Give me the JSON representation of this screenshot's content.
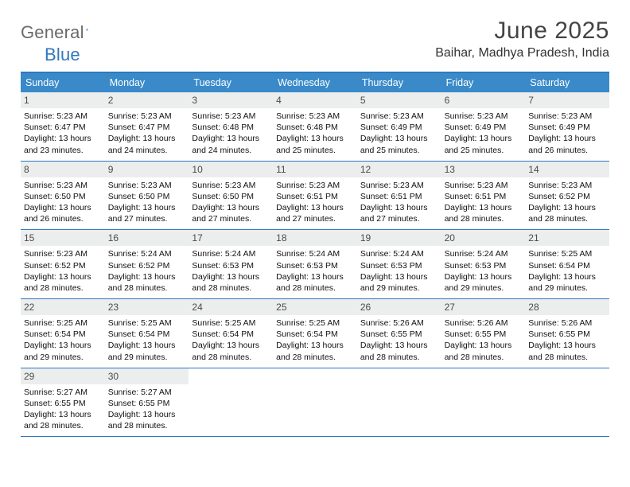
{
  "brand": {
    "word1": "General",
    "word2": "Blue"
  },
  "title": "June 2025",
  "subtitle": "Baihar, Madhya Pradesh, India",
  "colors": {
    "header_bar": "#3a8ac9",
    "rule": "#2f78bd",
    "date_bg": "#eceeee",
    "title_color": "#444444",
    "text_color": "#111111"
  },
  "day_names": [
    "Sunday",
    "Monday",
    "Tuesday",
    "Wednesday",
    "Thursday",
    "Friday",
    "Saturday"
  ],
  "weeks": [
    [
      {
        "n": "1",
        "sr": "5:23 AM",
        "ss": "6:47 PM",
        "dl": "13 hours and 23 minutes."
      },
      {
        "n": "2",
        "sr": "5:23 AM",
        "ss": "6:47 PM",
        "dl": "13 hours and 24 minutes."
      },
      {
        "n": "3",
        "sr": "5:23 AM",
        "ss": "6:48 PM",
        "dl": "13 hours and 24 minutes."
      },
      {
        "n": "4",
        "sr": "5:23 AM",
        "ss": "6:48 PM",
        "dl": "13 hours and 25 minutes."
      },
      {
        "n": "5",
        "sr": "5:23 AM",
        "ss": "6:49 PM",
        "dl": "13 hours and 25 minutes."
      },
      {
        "n": "6",
        "sr": "5:23 AM",
        "ss": "6:49 PM",
        "dl": "13 hours and 25 minutes."
      },
      {
        "n": "7",
        "sr": "5:23 AM",
        "ss": "6:49 PM",
        "dl": "13 hours and 26 minutes."
      }
    ],
    [
      {
        "n": "8",
        "sr": "5:23 AM",
        "ss": "6:50 PM",
        "dl": "13 hours and 26 minutes."
      },
      {
        "n": "9",
        "sr": "5:23 AM",
        "ss": "6:50 PM",
        "dl": "13 hours and 27 minutes."
      },
      {
        "n": "10",
        "sr": "5:23 AM",
        "ss": "6:50 PM",
        "dl": "13 hours and 27 minutes."
      },
      {
        "n": "11",
        "sr": "5:23 AM",
        "ss": "6:51 PM",
        "dl": "13 hours and 27 minutes."
      },
      {
        "n": "12",
        "sr": "5:23 AM",
        "ss": "6:51 PM",
        "dl": "13 hours and 27 minutes."
      },
      {
        "n": "13",
        "sr": "5:23 AM",
        "ss": "6:51 PM",
        "dl": "13 hours and 28 minutes."
      },
      {
        "n": "14",
        "sr": "5:23 AM",
        "ss": "6:52 PM",
        "dl": "13 hours and 28 minutes."
      }
    ],
    [
      {
        "n": "15",
        "sr": "5:23 AM",
        "ss": "6:52 PM",
        "dl": "13 hours and 28 minutes."
      },
      {
        "n": "16",
        "sr": "5:24 AM",
        "ss": "6:52 PM",
        "dl": "13 hours and 28 minutes."
      },
      {
        "n": "17",
        "sr": "5:24 AM",
        "ss": "6:53 PM",
        "dl": "13 hours and 28 minutes."
      },
      {
        "n": "18",
        "sr": "5:24 AM",
        "ss": "6:53 PM",
        "dl": "13 hours and 28 minutes."
      },
      {
        "n": "19",
        "sr": "5:24 AM",
        "ss": "6:53 PM",
        "dl": "13 hours and 29 minutes."
      },
      {
        "n": "20",
        "sr": "5:24 AM",
        "ss": "6:53 PM",
        "dl": "13 hours and 29 minutes."
      },
      {
        "n": "21",
        "sr": "5:25 AM",
        "ss": "6:54 PM",
        "dl": "13 hours and 29 minutes."
      }
    ],
    [
      {
        "n": "22",
        "sr": "5:25 AM",
        "ss": "6:54 PM",
        "dl": "13 hours and 29 minutes."
      },
      {
        "n": "23",
        "sr": "5:25 AM",
        "ss": "6:54 PM",
        "dl": "13 hours and 29 minutes."
      },
      {
        "n": "24",
        "sr": "5:25 AM",
        "ss": "6:54 PM",
        "dl": "13 hours and 28 minutes."
      },
      {
        "n": "25",
        "sr": "5:25 AM",
        "ss": "6:54 PM",
        "dl": "13 hours and 28 minutes."
      },
      {
        "n": "26",
        "sr": "5:26 AM",
        "ss": "6:55 PM",
        "dl": "13 hours and 28 minutes."
      },
      {
        "n": "27",
        "sr": "5:26 AM",
        "ss": "6:55 PM",
        "dl": "13 hours and 28 minutes."
      },
      {
        "n": "28",
        "sr": "5:26 AM",
        "ss": "6:55 PM",
        "dl": "13 hours and 28 minutes."
      }
    ],
    [
      {
        "n": "29",
        "sr": "5:27 AM",
        "ss": "6:55 PM",
        "dl": "13 hours and 28 minutes."
      },
      {
        "n": "30",
        "sr": "5:27 AM",
        "ss": "6:55 PM",
        "dl": "13 hours and 28 minutes."
      },
      null,
      null,
      null,
      null,
      null
    ]
  ],
  "labels": {
    "sunrise": "Sunrise:",
    "sunset": "Sunset:",
    "daylight": "Daylight:"
  }
}
